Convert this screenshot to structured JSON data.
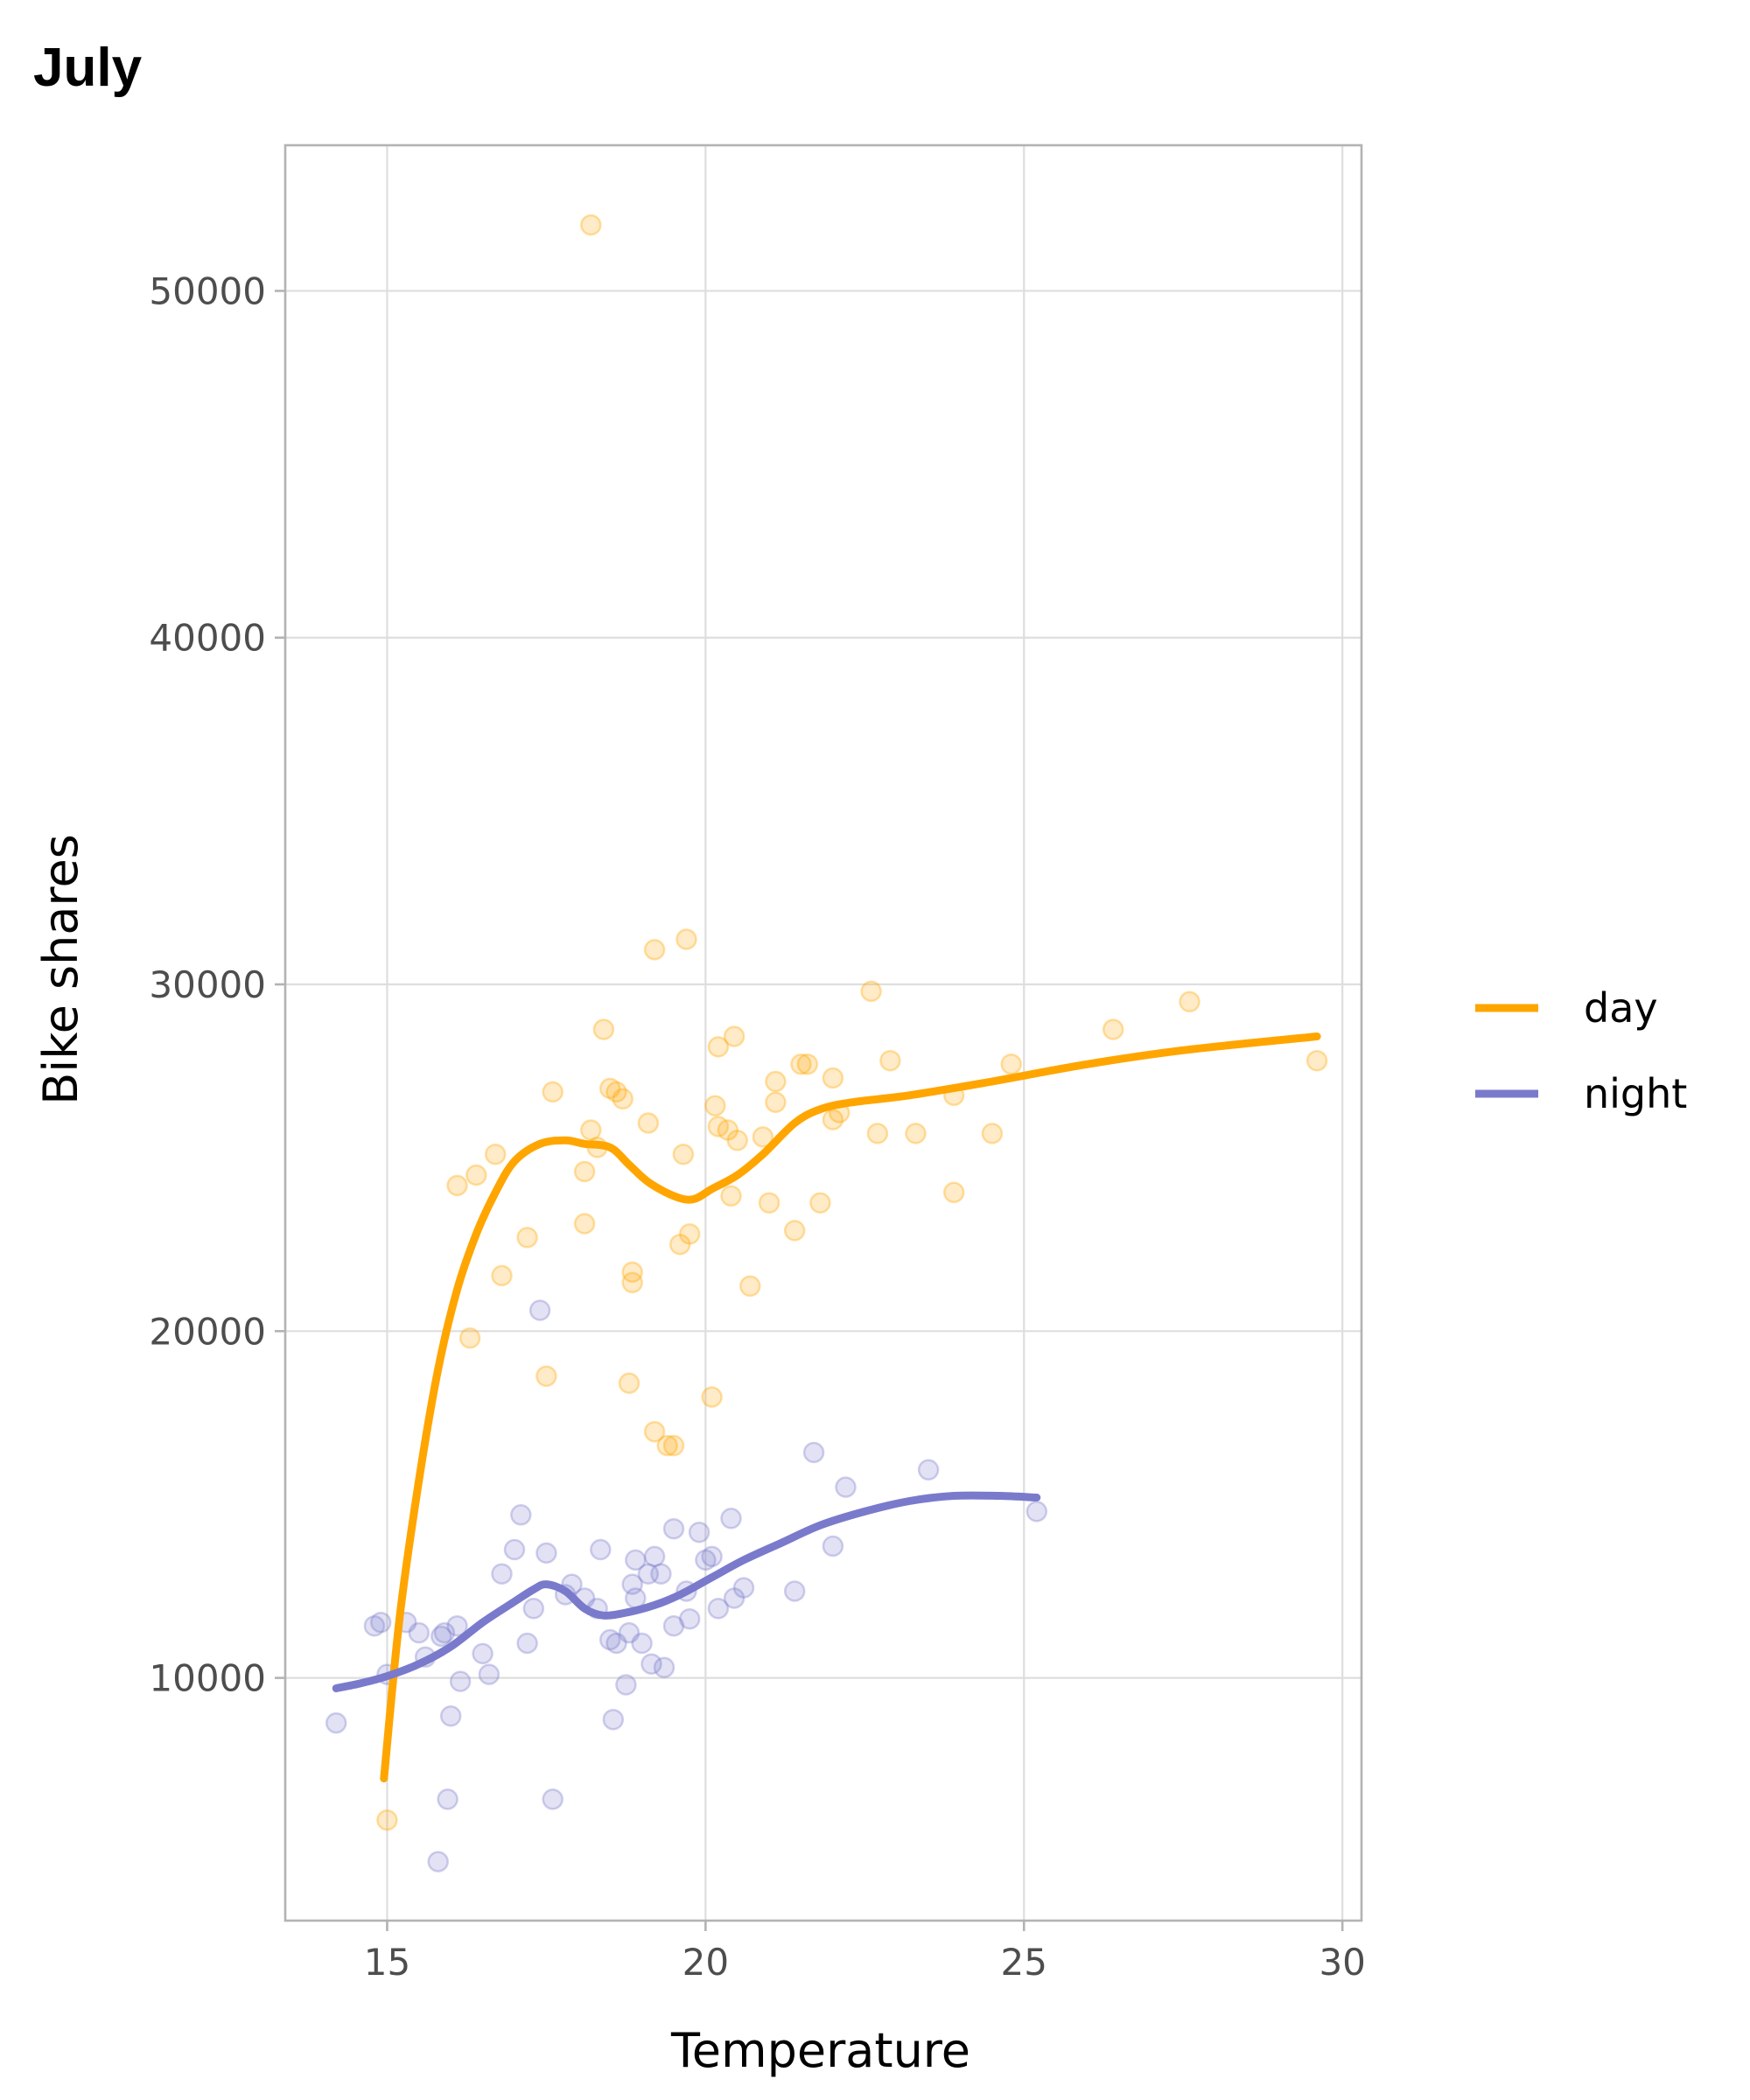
{
  "chart_data": {
    "type": "scatter",
    "title": "July",
    "xlabel": "Temperature",
    "ylabel": "Bike shares",
    "xlim": [
      13.4,
      30.3
    ],
    "ylim": [
      3000,
      54200
    ],
    "xticks": [
      15,
      20,
      25,
      30
    ],
    "yticks": [
      10000,
      20000,
      30000,
      40000,
      50000
    ],
    "xtick_labels": [
      "15",
      "20",
      "25",
      "30"
    ],
    "ytick_labels": [
      "10000",
      "20000",
      "30000",
      "40000",
      "50000"
    ],
    "grid": true,
    "legend_position": "right",
    "series": [
      {
        "name": "day",
        "color": "#FFA500",
        "points": [
          [
            18.2,
            51900
          ],
          [
            15.0,
            5900
          ],
          [
            16.3,
            19800
          ],
          [
            16.1,
            24200
          ],
          [
            16.4,
            24500
          ],
          [
            16.7,
            25100
          ],
          [
            16.8,
            21600
          ],
          [
            17.2,
            22700
          ],
          [
            17.5,
            18700
          ],
          [
            17.6,
            26900
          ],
          [
            18.1,
            24600
          ],
          [
            18.1,
            23100
          ],
          [
            18.2,
            25800
          ],
          [
            18.3,
            25300
          ],
          [
            18.4,
            28700
          ],
          [
            18.5,
            27000
          ],
          [
            18.6,
            26900
          ],
          [
            18.7,
            26700
          ],
          [
            18.8,
            18500
          ],
          [
            18.85,
            21700
          ],
          [
            18.85,
            21400
          ],
          [
            19.1,
            26000
          ],
          [
            19.2,
            31000
          ],
          [
            19.2,
            17100
          ],
          [
            19.4,
            16700
          ],
          [
            19.5,
            16700
          ],
          [
            19.6,
            22500
          ],
          [
            19.65,
            25100
          ],
          [
            19.7,
            31300
          ],
          [
            19.75,
            22800
          ],
          [
            20.1,
            18100
          ],
          [
            20.15,
            26500
          ],
          [
            20.2,
            28200
          ],
          [
            20.2,
            25900
          ],
          [
            20.35,
            25800
          ],
          [
            20.4,
            23900
          ],
          [
            20.45,
            28500
          ],
          [
            20.5,
            25500
          ],
          [
            20.7,
            21300
          ],
          [
            20.9,
            25600
          ],
          [
            21.0,
            23700
          ],
          [
            21.1,
            26600
          ],
          [
            21.1,
            27200
          ],
          [
            21.4,
            22900
          ],
          [
            21.5,
            27700
          ],
          [
            21.6,
            27700
          ],
          [
            21.8,
            23700
          ],
          [
            22.0,
            26100
          ],
          [
            22.0,
            27300
          ],
          [
            22.1,
            26300
          ],
          [
            22.6,
            29800
          ],
          [
            22.7,
            25700
          ],
          [
            22.9,
            27800
          ],
          [
            23.3,
            25700
          ],
          [
            23.9,
            26800
          ],
          [
            23.9,
            24000
          ],
          [
            24.5,
            25700
          ],
          [
            24.8,
            27700
          ],
          [
            26.4,
            28700
          ],
          [
            27.6,
            29500
          ],
          [
            29.6,
            27800
          ]
        ],
        "smooth": [
          [
            14.95,
            7100
          ],
          [
            15.2,
            11800
          ],
          [
            15.5,
            15700
          ],
          [
            15.8,
            18900
          ],
          [
            16.1,
            21200
          ],
          [
            16.4,
            22800
          ],
          [
            16.7,
            24000
          ],
          [
            17.0,
            24900
          ],
          [
            17.4,
            25400
          ],
          [
            17.8,
            25500
          ],
          [
            18.1,
            25400
          ],
          [
            18.5,
            25300
          ],
          [
            18.8,
            24800
          ],
          [
            19.1,
            24300
          ],
          [
            19.5,
            23900
          ],
          [
            19.8,
            23800
          ],
          [
            20.1,
            24100
          ],
          [
            20.5,
            24500
          ],
          [
            20.9,
            25100
          ],
          [
            21.4,
            26000
          ],
          [
            21.8,
            26400
          ],
          [
            22.3,
            26600
          ],
          [
            23.2,
            26800
          ],
          [
            24.5,
            27200
          ],
          [
            26.0,
            27700
          ],
          [
            27.5,
            28100
          ],
          [
            29.6,
            28500
          ]
        ]
      },
      {
        "name": "night",
        "color": "#7A7ACC",
        "points": [
          [
            14.2,
            8700
          ],
          [
            14.8,
            11500
          ],
          [
            14.9,
            11600
          ],
          [
            15.0,
            10100
          ],
          [
            15.3,
            11600
          ],
          [
            15.5,
            11300
          ],
          [
            15.6,
            10600
          ],
          [
            15.8,
            4700
          ],
          [
            15.85,
            11200
          ],
          [
            15.9,
            11300
          ],
          [
            15.95,
            6500
          ],
          [
            16.0,
            8900
          ],
          [
            16.1,
            11500
          ],
          [
            16.15,
            9900
          ],
          [
            16.5,
            10700
          ],
          [
            16.6,
            10100
          ],
          [
            16.8,
            13000
          ],
          [
            17.0,
            13700
          ],
          [
            17.1,
            14700
          ],
          [
            17.2,
            11000
          ],
          [
            17.3,
            12000
          ],
          [
            17.4,
            20600
          ],
          [
            17.5,
            13600
          ],
          [
            17.6,
            6500
          ],
          [
            17.8,
            12400
          ],
          [
            17.9,
            12700
          ],
          [
            18.1,
            12300
          ],
          [
            18.3,
            12000
          ],
          [
            18.35,
            13700
          ],
          [
            18.5,
            11100
          ],
          [
            18.55,
            8800
          ],
          [
            18.6,
            11000
          ],
          [
            18.75,
            9800
          ],
          [
            18.8,
            11300
          ],
          [
            18.85,
            12700
          ],
          [
            18.9,
            13400
          ],
          [
            18.9,
            12300
          ],
          [
            19.0,
            11000
          ],
          [
            19.1,
            13000
          ],
          [
            19.15,
            10400
          ],
          [
            19.2,
            13500
          ],
          [
            19.3,
            13000
          ],
          [
            19.35,
            10300
          ],
          [
            19.5,
            14300
          ],
          [
            19.5,
            11500
          ],
          [
            19.7,
            12500
          ],
          [
            19.75,
            11700
          ],
          [
            19.9,
            14200
          ],
          [
            20.0,
            13400
          ],
          [
            20.1,
            13500
          ],
          [
            20.2,
            12000
          ],
          [
            20.4,
            14600
          ],
          [
            20.45,
            12300
          ],
          [
            20.6,
            12600
          ],
          [
            21.4,
            12500
          ],
          [
            21.7,
            16500
          ],
          [
            22.0,
            13800
          ],
          [
            22.2,
            15500
          ],
          [
            23.5,
            16000
          ],
          [
            25.2,
            14800
          ]
        ],
        "smooth": [
          [
            14.2,
            9700
          ],
          [
            14.6,
            9850
          ],
          [
            15.0,
            10050
          ],
          [
            15.5,
            10400
          ],
          [
            16.0,
            10900
          ],
          [
            16.5,
            11600
          ],
          [
            17.0,
            12200
          ],
          [
            17.3,
            12550
          ],
          [
            17.5,
            12700
          ],
          [
            17.8,
            12500
          ],
          [
            18.1,
            12000
          ],
          [
            18.4,
            11800
          ],
          [
            18.8,
            11900
          ],
          [
            19.2,
            12100
          ],
          [
            19.6,
            12400
          ],
          [
            20.1,
            12900
          ],
          [
            20.6,
            13400
          ],
          [
            21.2,
            13900
          ],
          [
            21.8,
            14400
          ],
          [
            22.5,
            14800
          ],
          [
            23.2,
            15100
          ],
          [
            23.9,
            15250
          ],
          [
            24.6,
            15250
          ],
          [
            25.2,
            15200
          ]
        ]
      }
    ],
    "legend": [
      "day",
      "night"
    ]
  }
}
